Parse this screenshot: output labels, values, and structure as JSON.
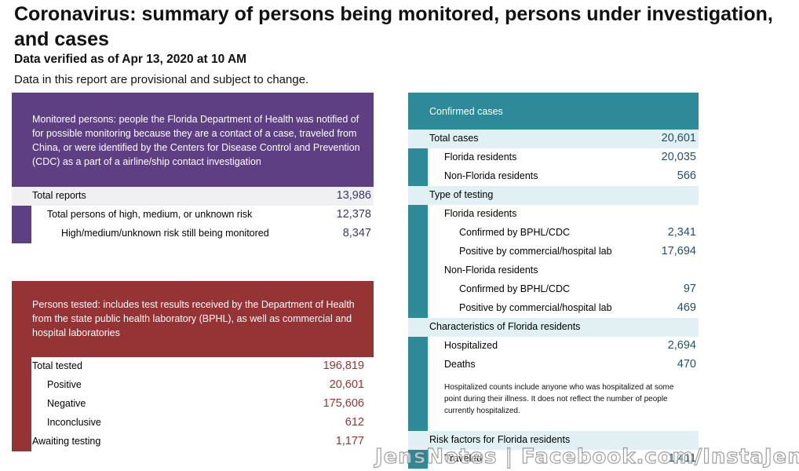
{
  "header": {
    "title": "Coronavirus: summary of persons being monitored, persons under investigation, and cases",
    "verified": "Data verified as of Apr 13, 2020 at 10 AM",
    "provisional": "Data in this report are provisional and subject to change."
  },
  "monitored": {
    "description": "Monitored persons: people the Florida Department of Health was notified of for possible monitoring because they are a contact of a case, traveled from China, or were identified by the Centers for Disease Control and Prevention (CDC) as a part of a airline/ship contact investigation",
    "rows": [
      {
        "label": "Total reports",
        "value": "13,986"
      },
      {
        "label": "Total persons of high, medium, or unknown risk",
        "value": "12,378"
      },
      {
        "label": "High/medium/unknown risk still being monitored",
        "value": "8,347"
      }
    ]
  },
  "tested": {
    "description": "Persons tested: includes test results received by the Department of Health from the state public health laboratory (BPHL), as well as commercial and hospital laboratories",
    "rows": [
      {
        "label": "Total tested",
        "value": "196,819"
      },
      {
        "label": "Positive",
        "value": "20,601"
      },
      {
        "label": "Negative",
        "value": "175,606"
      },
      {
        "label": "Inconclusive",
        "value": "612"
      },
      {
        "label": "Awaiting testing",
        "value": "1,177"
      }
    ]
  },
  "confirmed": {
    "header": "Confirmed cases",
    "total_label": "Total cases",
    "total_value": "20,601",
    "fl_residents_label": "Florida residents",
    "fl_residents_value": "20,035",
    "nonfl_residents_label": "Non-Florida residents",
    "nonfl_residents_value": "566",
    "testing_label": "Type of testing",
    "testing_fl_label": "Florida residents",
    "fl_bphl_label": "Confirmed by BPHL/CDC",
    "fl_bphl_value": "2,341",
    "fl_comm_label": "Positive by commercial/hospital lab",
    "fl_comm_value": "17,694",
    "testing_nonfl_label": "Non-Florida residents",
    "nonfl_bphl_label": "Confirmed by BPHL/CDC",
    "nonfl_bphl_value": "97",
    "nonfl_comm_label": "Positive by commercial/hospital lab",
    "nonfl_comm_value": "469",
    "characteristics_label": "Characteristics of Florida residents",
    "hospitalized_label": "Hospitalized",
    "hospitalized_value": "2,694",
    "deaths_label": "Deaths",
    "deaths_value": "470",
    "note": "Hospitalized counts include anyone who was hospitalized at some point during their illness. It does not reflect the number of people currently hospitalized.",
    "risk_label": "Risk factors for Florida residents",
    "traveled_label": "Traveled",
    "traveled_value": "1,411"
  },
  "watermark": "JensNotes | Facebook.com/InstaJen"
}
